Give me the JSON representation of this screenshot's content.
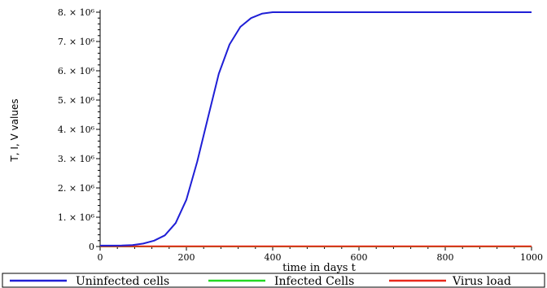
{
  "chart_data": {
    "type": "line",
    "title": "",
    "xlabel": "time in days t",
    "ylabel": "T, I, V values",
    "xlim": [
      0,
      1000
    ],
    "ylim": [
      0,
      8000000
    ],
    "x_ticks": [
      0,
      200,
      400,
      600,
      800,
      1000
    ],
    "x_tick_labels": [
      "0",
      "200",
      "400",
      "600",
      "800",
      "1000"
    ],
    "y_ticks": [
      0,
      1000000,
      2000000,
      3000000,
      4000000,
      5000000,
      6000000,
      7000000,
      8000000
    ],
    "y_tick_labels": [
      "0",
      "1. × 10⁶",
      "2. × 10⁶",
      "3. × 10⁶",
      "4. × 10⁶",
      "5. × 10⁶",
      "6. × 10⁶",
      "7. × 10⁶",
      "8. × 10⁶"
    ],
    "grid": false,
    "legend_position": "bottom",
    "series": [
      {
        "name": "Uninfected cells",
        "color": "#1f1fd6",
        "x": [
          0,
          25,
          50,
          75,
          100,
          125,
          150,
          175,
          200,
          225,
          250,
          275,
          300,
          325,
          350,
          375,
          400,
          450,
          500,
          600,
          700,
          800,
          900,
          1000
        ],
        "y": [
          30000,
          30000,
          35000,
          50000,
          100000,
          200000,
          380000,
          800000,
          1600000,
          2900000,
          4400000,
          5900000,
          6900000,
          7500000,
          7800000,
          7950000,
          8000000,
          8000000,
          8000000,
          8000000,
          8000000,
          8000000,
          8000000,
          8000000
        ]
      },
      {
        "name": "Infected Cells",
        "color": "#22d822",
        "x": [
          0,
          1000
        ],
        "y": [
          0,
          0
        ]
      },
      {
        "name": "Virus load",
        "color": "#e8281a",
        "x": [
          0,
          1000
        ],
        "y": [
          5000,
          5000
        ]
      }
    ]
  }
}
